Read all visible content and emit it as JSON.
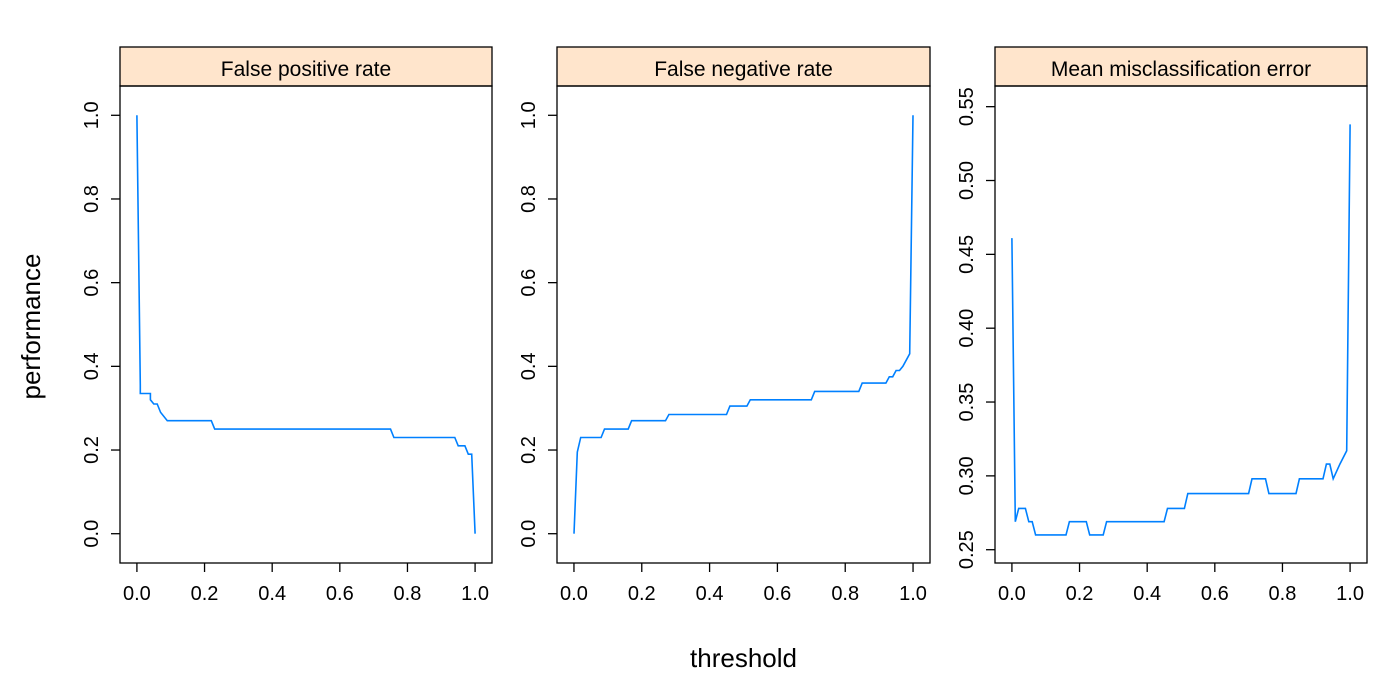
{
  "chart_data": {
    "type": "line",
    "xlabel": "threshold",
    "ylabel": "performance",
    "line_color": "#0080ff",
    "strip_color": "#ffe5cc",
    "panels": [
      {
        "title": "False positive rate",
        "xlim": [
          -0.05,
          1.05
        ],
        "ylim": [
          -0.07,
          1.07
        ],
        "x_ticks": [
          "0.0",
          "0.2",
          "0.4",
          "0.6",
          "0.8",
          "1.0"
        ],
        "y_ticks": [
          "0.0",
          "0.2",
          "0.4",
          "0.6",
          "0.8",
          "1.0"
        ],
        "x": [
          0.0,
          0.01,
          0.01,
          0.02,
          0.04,
          0.04,
          0.05,
          0.06,
          0.07,
          0.07,
          0.09,
          0.09,
          0.22,
          0.23,
          0.75,
          0.76,
          0.94,
          0.95,
          0.97,
          0.98,
          0.99,
          1.0
        ],
        "y": [
          1.0,
          0.355,
          0.335,
          0.335,
          0.335,
          0.32,
          0.31,
          0.31,
          0.29,
          0.29,
          0.27,
          0.27,
          0.27,
          0.25,
          0.25,
          0.23,
          0.23,
          0.21,
          0.21,
          0.19,
          0.19,
          0.0
        ]
      },
      {
        "title": "False negative rate",
        "xlim": [
          -0.05,
          1.05
        ],
        "ylim": [
          -0.07,
          1.07
        ],
        "x_ticks": [
          "0.0",
          "0.2",
          "0.4",
          "0.6",
          "0.8",
          "1.0"
        ],
        "y_ticks": [
          "0.0",
          "0.2",
          "0.4",
          "0.6",
          "0.8",
          "1.0"
        ],
        "x": [
          0.0,
          0.01,
          0.02,
          0.02,
          0.08,
          0.09,
          0.16,
          0.17,
          0.27,
          0.28,
          0.45,
          0.46,
          0.51,
          0.52,
          0.7,
          0.71,
          0.84,
          0.85,
          0.92,
          0.93,
          0.94,
          0.95,
          0.96,
          0.97,
          0.99,
          1.0
        ],
        "y": [
          0.0,
          0.195,
          0.23,
          0.23,
          0.23,
          0.25,
          0.25,
          0.27,
          0.27,
          0.285,
          0.285,
          0.305,
          0.305,
          0.32,
          0.32,
          0.34,
          0.34,
          0.36,
          0.36,
          0.375,
          0.375,
          0.39,
          0.39,
          0.4,
          0.43,
          1.0
        ]
      },
      {
        "title": "Mean misclassification error",
        "xlim": [
          -0.05,
          1.05
        ],
        "ylim": [
          0.241,
          0.564
        ],
        "x_ticks": [
          "0.0",
          "0.2",
          "0.4",
          "0.6",
          "0.8",
          "1.0"
        ],
        "y_ticks": [
          "0.25",
          "0.30",
          "0.35",
          "0.40",
          "0.45",
          "0.50",
          "0.55"
        ],
        "x": [
          0.0,
          0.01,
          0.02,
          0.04,
          0.05,
          0.06,
          0.07,
          0.16,
          0.17,
          0.22,
          0.23,
          0.27,
          0.28,
          0.45,
          0.46,
          0.51,
          0.52,
          0.7,
          0.71,
          0.75,
          0.76,
          0.84,
          0.85,
          0.92,
          0.93,
          0.94,
          0.95,
          0.97,
          0.99,
          1.0
        ],
        "y": [
          0.461,
          0.269,
          0.278,
          0.278,
          0.269,
          0.269,
          0.26,
          0.26,
          0.269,
          0.269,
          0.26,
          0.26,
          0.269,
          0.269,
          0.278,
          0.278,
          0.288,
          0.288,
          0.298,
          0.298,
          0.288,
          0.288,
          0.298,
          0.298,
          0.308,
          0.308,
          0.298,
          0.308,
          0.317,
          0.538
        ]
      }
    ]
  }
}
